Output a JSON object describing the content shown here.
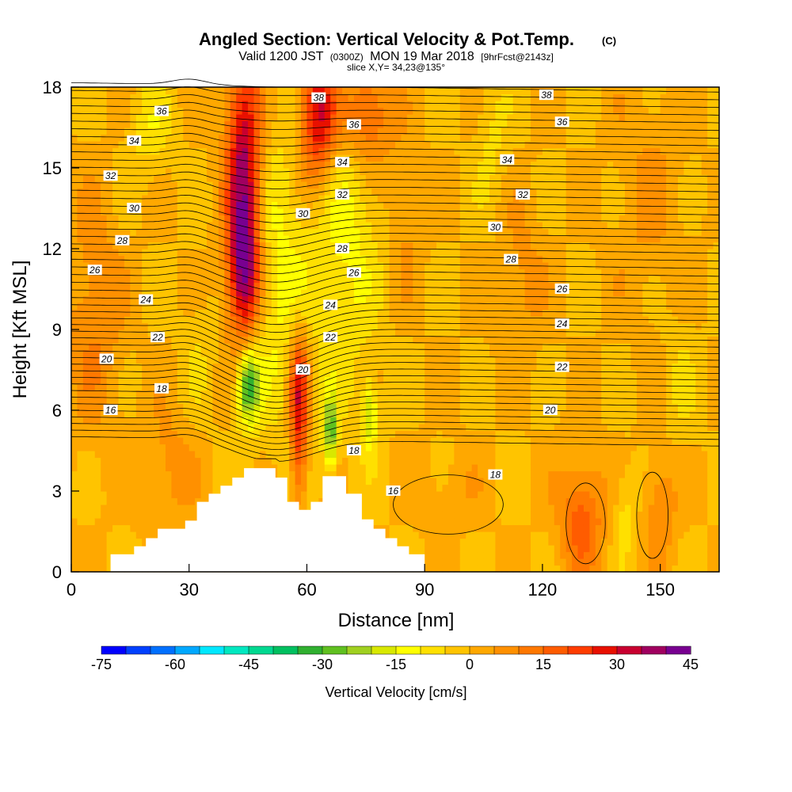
{
  "title": {
    "main": "Angled Section: Vertical Velocity & Pot.Temp.",
    "main_unit": "(C)",
    "valid_prefix": "Valid 1200 JST",
    "valid_utc": "(0300Z)",
    "valid_date": "MON 19 Mar 2018",
    "forecast": "[9hrFcst@2143z]",
    "slice": "slice X,Y= 34,23@135°"
  },
  "chart_data": {
    "type": "heatmap",
    "xlabel": "Distance [nm]",
    "ylabel": "Height [Kft MSL]",
    "xlim": [
      0,
      165
    ],
    "ylim": [
      0,
      18
    ],
    "x_ticks": [
      0,
      30,
      60,
      90,
      120,
      150
    ],
    "y_ticks": [
      0,
      3,
      6,
      9,
      12,
      15,
      18
    ],
    "grid": false,
    "colorbar": {
      "label": "Vertical Velocity [cm/s]",
      "ticks": [
        -75,
        -60,
        -45,
        -30,
        -15,
        0,
        15,
        30,
        45
      ],
      "min": -75,
      "max": 45,
      "step": 5,
      "colors": [
        "#0000ff",
        "#0040ff",
        "#0070ff",
        "#00a8ff",
        "#00e8ff",
        "#00e8c0",
        "#00d890",
        "#00c060",
        "#30b030",
        "#60c020",
        "#a0d020",
        "#d8e800",
        "#ffff00",
        "#ffe000",
        "#ffc400",
        "#ffa800",
        "#ff9000",
        "#ff7800",
        "#ff5c00",
        "#ff3c00",
        "#e81000",
        "#c80030",
        "#a00060",
        "#780090"
      ]
    },
    "background_value": 0,
    "velocity_features": [
      {
        "x": 44,
        "y": 14.5,
        "sx": 3.2,
        "sy": 3.5,
        "w": 40
      },
      {
        "x": 44,
        "y": 11,
        "sx": 2.8,
        "sy": 1.5,
        "w": 25
      },
      {
        "x": 63,
        "y": 17,
        "sx": 3.5,
        "sy": 1.8,
        "w": 35
      },
      {
        "x": 75,
        "y": 17,
        "sx": 4.5,
        "sy": 1.4,
        "w": 22
      },
      {
        "x": 58,
        "y": 6.8,
        "sx": 1.8,
        "sy": 1.6,
        "w": 30
      },
      {
        "x": 58,
        "y": 4,
        "sx": 1.4,
        "sy": 1.3,
        "w": 15
      },
      {
        "x": 45,
        "y": 6.9,
        "sx": 2,
        "sy": 1,
        "w": -32
      },
      {
        "x": 66,
        "y": 5.2,
        "sx": 1.2,
        "sy": 1,
        "w": -28
      },
      {
        "x": 76,
        "y": 5.8,
        "sx": 1.3,
        "sy": 0.9,
        "w": -20
      },
      {
        "x": 52,
        "y": 11,
        "sx": 6,
        "sy": 4,
        "w": -12
      },
      {
        "x": 70,
        "y": 13,
        "sx": 6,
        "sy": 4.5,
        "w": -12
      },
      {
        "x": 20,
        "y": 16.5,
        "sx": 4,
        "sy": 1.3,
        "w": -8
      },
      {
        "x": 6,
        "y": 9.5,
        "sx": 5,
        "sy": 3,
        "w": 10
      },
      {
        "x": 130,
        "y": 2,
        "sx": 4,
        "sy": 1.5,
        "w": 18
      },
      {
        "x": 141,
        "y": 2.2,
        "sx": 2,
        "sy": 1.2,
        "w": -8
      },
      {
        "x": 150,
        "y": 2.5,
        "sx": 3,
        "sy": 1.5,
        "w": 10
      },
      {
        "x": 115,
        "y": 11,
        "sx": 4,
        "sy": 2,
        "w": 7
      },
      {
        "x": 147,
        "y": 14,
        "sx": 6,
        "sy": 3,
        "w": 6
      },
      {
        "x": 85,
        "y": 13,
        "sx": 3,
        "sy": 2,
        "w": 6
      },
      {
        "x": 96,
        "y": 3,
        "sx": 6,
        "sy": 1,
        "w": 4
      },
      {
        "x": 107,
        "y": 16,
        "sx": 3,
        "sy": 1.8,
        "w": -6
      },
      {
        "x": 155,
        "y": 7,
        "sx": 3,
        "sy": 2,
        "w": -5
      },
      {
        "x": 25,
        "y": 4,
        "sx": 5,
        "sy": 1.5,
        "w": 8
      },
      {
        "x": 32,
        "y": 8,
        "sx": 3,
        "sy": 2,
        "w": -4
      }
    ],
    "theta_contours": {
      "interval": 0.5,
      "min": 14,
      "max": 38.5,
      "labels": [
        {
          "value": "36",
          "x": 23,
          "y": 17.1
        },
        {
          "value": "34",
          "x": 16,
          "y": 16.0
        },
        {
          "value": "32",
          "x": 10,
          "y": 14.7
        },
        {
          "value": "30",
          "x": 16,
          "y": 13.5
        },
        {
          "value": "28",
          "x": 13,
          "y": 12.3
        },
        {
          "value": "26",
          "x": 6,
          "y": 11.2
        },
        {
          "value": "24",
          "x": 19,
          "y": 10.1
        },
        {
          "value": "22",
          "x": 22,
          "y": 8.7
        },
        {
          "value": "20",
          "x": 9,
          "y": 7.9
        },
        {
          "value": "18",
          "x": 23,
          "y": 6.8
        },
        {
          "value": "16",
          "x": 10,
          "y": 6.0
        },
        {
          "value": "38",
          "x": 63,
          "y": 17.6
        },
        {
          "value": "36",
          "x": 72,
          "y": 16.6
        },
        {
          "value": "34",
          "x": 69,
          "y": 15.2
        },
        {
          "value": "32",
          "x": 69,
          "y": 14.0
        },
        {
          "value": "30",
          "x": 59,
          "y": 13.3
        },
        {
          "value": "28",
          "x": 69,
          "y": 12.0
        },
        {
          "value": "26",
          "x": 72,
          "y": 11.1
        },
        {
          "value": "24",
          "x": 66,
          "y": 9.9
        },
        {
          "value": "22",
          "x": 66,
          "y": 8.7
        },
        {
          "value": "20",
          "x": 59,
          "y": 7.5
        },
        {
          "value": "18",
          "x": 72,
          "y": 4.5
        },
        {
          "value": "16",
          "x": 82,
          "y": 3.0
        },
        {
          "value": "38",
          "x": 121,
          "y": 17.7
        },
        {
          "value": "36",
          "x": 125,
          "y": 16.7
        },
        {
          "value": "34",
          "x": 111,
          "y": 15.3
        },
        {
          "value": "32",
          "x": 115,
          "y": 14.0
        },
        {
          "value": "30",
          "x": 108,
          "y": 12.8
        },
        {
          "value": "28",
          "x": 112,
          "y": 11.6
        },
        {
          "value": "26",
          "x": 125,
          "y": 10.5
        },
        {
          "value": "24",
          "x": 125,
          "y": 9.2
        },
        {
          "value": "22",
          "x": 125,
          "y": 7.6
        },
        {
          "value": "20",
          "x": 122,
          "y": 6.0
        },
        {
          "value": "18",
          "x": 108,
          "y": 3.6
        }
      ]
    },
    "terrain": [
      [
        0,
        0
      ],
      [
        10,
        0
      ],
      [
        10,
        0.65
      ],
      [
        16,
        0.65
      ],
      [
        16,
        0.95
      ],
      [
        19,
        0.95
      ],
      [
        19,
        1.25
      ],
      [
        22,
        1.25
      ],
      [
        22,
        1.6
      ],
      [
        29,
        1.6
      ],
      [
        29,
        1.9
      ],
      [
        32,
        1.9
      ],
      [
        32,
        2.6
      ],
      [
        35,
        2.6
      ],
      [
        35,
        2.9
      ],
      [
        38,
        2.9
      ],
      [
        38,
        3.2
      ],
      [
        41,
        3.2
      ],
      [
        41,
        3.5
      ],
      [
        44,
        3.5
      ],
      [
        44,
        3.85
      ],
      [
        52,
        3.85
      ],
      [
        52,
        3.5
      ],
      [
        55,
        3.5
      ],
      [
        55,
        2.6
      ],
      [
        58,
        2.6
      ],
      [
        58,
        2.3
      ],
      [
        61,
        2.3
      ],
      [
        61,
        2.6
      ],
      [
        64,
        2.6
      ],
      [
        64,
        3.55
      ],
      [
        70,
        3.55
      ],
      [
        70,
        2.9
      ],
      [
        74,
        2.9
      ],
      [
        74,
        1.95
      ],
      [
        77,
        1.95
      ],
      [
        77,
        1.6
      ],
      [
        80,
        1.6
      ],
      [
        80,
        1.25
      ],
      [
        83,
        1.25
      ],
      [
        83,
        0.95
      ],
      [
        86,
        0.95
      ],
      [
        86,
        0.65
      ],
      [
        90,
        0.65
      ],
      [
        90,
        0
      ],
      [
        165,
        0
      ]
    ]
  }
}
